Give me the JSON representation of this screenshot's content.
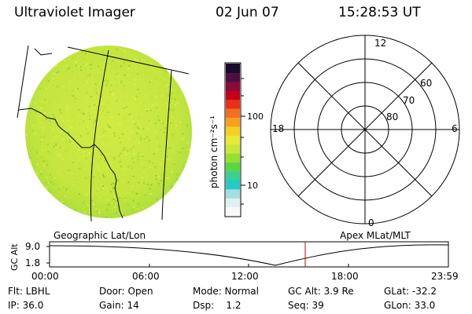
{
  "header": {
    "instrument": "Ultraviolet Imager",
    "date": "02 Jun 07",
    "time": "15:28:53 UT"
  },
  "colorbar": {
    "unit_label": "photon cm⁻²s⁻¹",
    "tick_100": "100",
    "tick_10": "10",
    "colors": [
      "#1a0a2e",
      "#4a1040",
      "#8a0a3c",
      "#c40018",
      "#e8301a",
      "#f07020",
      "#f7a020",
      "#f5d020",
      "#e8e838",
      "#c8e838",
      "#98e030",
      "#58d840",
      "#38d098",
      "#28c8c8",
      "#a0e0e0",
      "#e0f0f0",
      "#f8f8f8"
    ]
  },
  "image": {
    "fill": "#c8e840",
    "green_tint": "#98d838"
  },
  "polar": {
    "mlt_12": "12",
    "mlt_18": "18",
    "mlt_6": "6",
    "mlt_0": "0",
    "lat_60": "60",
    "lat_70": "70",
    "lat_80": "80"
  },
  "altitude_panel": {
    "left_title": "Geographic Lat/Lon",
    "right_title": "Apex MLat/MLT",
    "y_label": "GC Alt",
    "y_max": "9.0",
    "y_min": "1.8",
    "x_ticks": [
      "00:00",
      "06:00",
      "12:00",
      "18:00",
      "23:59"
    ],
    "marker_color": "#cc0000"
  },
  "footer": {
    "filter": "Flt: LBHL",
    "ip": "IP: 36.0",
    "door": "Door: Open",
    "gain": "Gain: 14",
    "mode": "Mode: Normal",
    "dsp": "Dsp:    1.2",
    "gc_alt": "GC Alt: 3.9 Re",
    "seq": "Seq: 39",
    "glat": "GLat: -32.2",
    "glon": "GLon: 33.0"
  }
}
